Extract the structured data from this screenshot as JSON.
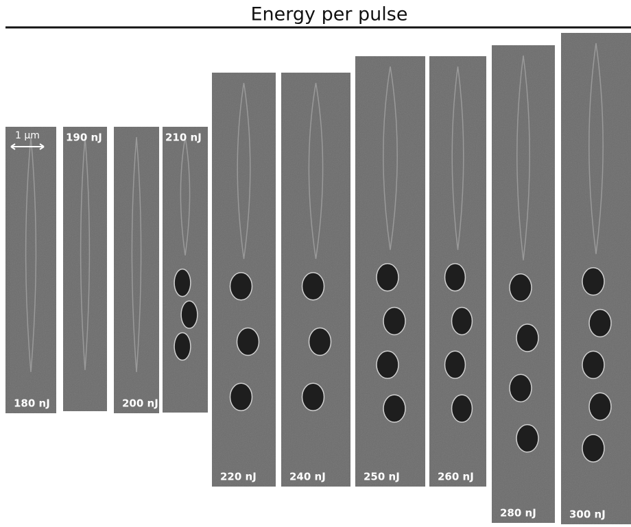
{
  "title": "Energy per pulse",
  "scale_bar": "1 μm",
  "panels": [
    {
      "label": "180 nJ"
    },
    {
      "label": "190 nJ"
    },
    {
      "label": "200 nJ"
    },
    {
      "label": "210 nJ"
    },
    {
      "label": "220 nJ"
    },
    {
      "label": "240 nJ"
    },
    {
      "label": "250 nJ"
    },
    {
      "label": "260 nJ"
    },
    {
      "label": "280 nJ"
    },
    {
      "label": "300 nJ"
    }
  ]
}
